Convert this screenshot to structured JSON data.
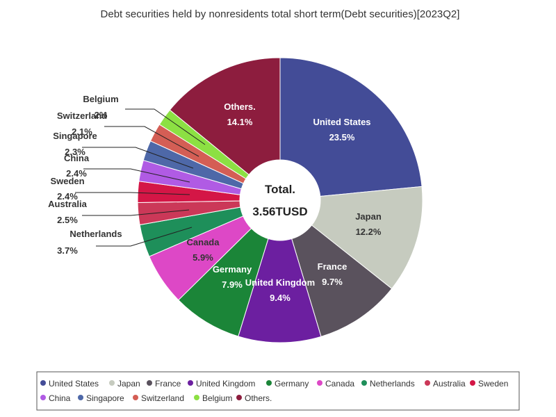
{
  "chart_data": {
    "type": "pie",
    "variant": "donut",
    "title": "Debt securities held by nonresidents total short term(Debt securities)[2023Q2]",
    "center_label": "Total.",
    "center_value": "3.56TUSD",
    "slices": [
      {
        "name": "United States",
        "value": 23.5,
        "label": "23.5%",
        "color": "#434C97"
      },
      {
        "name": "Japan",
        "value": 12.2,
        "label": "12.2%",
        "color": "#C6CBBF"
      },
      {
        "name": "France",
        "value": 9.7,
        "label": "9.7%",
        "color": "#5A525D"
      },
      {
        "name": "United Kingdom",
        "value": 9.4,
        "label": "9.4%",
        "color": "#6C1FA0"
      },
      {
        "name": "Germany",
        "value": 7.9,
        "label": "7.9%",
        "color": "#1B8538"
      },
      {
        "name": "Canada",
        "value": 5.9,
        "label": "5.9%",
        "color": "#DD48C6"
      },
      {
        "name": "Netherlands",
        "value": 3.7,
        "label": "3.7%",
        "color": "#1E8F5A"
      },
      {
        "name": "Australia",
        "value": 2.5,
        "label": "2.5%",
        "color": "#CB3858"
      },
      {
        "name": "Sweden",
        "value": 2.4,
        "label": "2.4%",
        "color": "#D41646"
      },
      {
        "name": "China",
        "value": 2.4,
        "label": "2.4%",
        "color": "#B05BE4"
      },
      {
        "name": "Singapore",
        "value": 2.3,
        "label": "2.3%",
        "color": "#4E68A8"
      },
      {
        "name": "Switzerland",
        "value": 2.1,
        "label": "2.1%",
        "color": "#D45E55"
      },
      {
        "name": "Belgium",
        "value": 2.0,
        "label": "2%",
        "color": "#8CE043"
      },
      {
        "name": "Others.",
        "value": 14.1,
        "label": "14.1%",
        "color": "#8D1D3E"
      }
    ],
    "legend_placement": "bottom"
  }
}
